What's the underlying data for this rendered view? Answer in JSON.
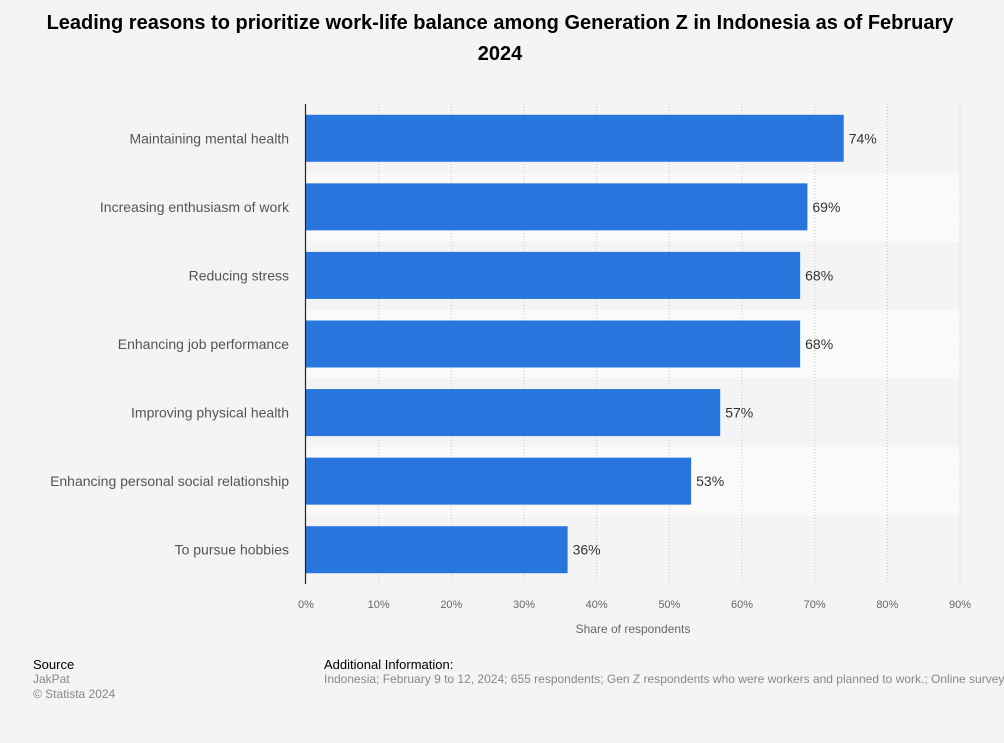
{
  "title": "Leading reasons to prioritize work-life balance among Generation Z in Indonesia as of February 2024",
  "chart_data": {
    "type": "bar",
    "orientation": "horizontal",
    "categories": [
      "Maintaining mental health",
      "Increasing enthusiasm of work",
      "Reducing stress",
      "Enhancing job performance",
      "Improving physical health",
      "Enhancing personal social relationship",
      "To pursue hobbies"
    ],
    "values": [
      74,
      69,
      68,
      68,
      57,
      53,
      36
    ],
    "value_labels": [
      "74%",
      "69%",
      "68%",
      "68%",
      "57%",
      "53%",
      "36%"
    ],
    "xlabel": "Share of respondents",
    "xlim": [
      0,
      90
    ],
    "xticks": [
      "0%",
      "10%",
      "20%",
      "30%",
      "40%",
      "50%",
      "60%",
      "70%",
      "80%",
      "90%"
    ],
    "grid": true,
    "bar_color": "#2876dd"
  },
  "footer": {
    "source_heading": "Source",
    "source_name": "JakPat",
    "copyright": "© Statista 2024",
    "info_heading": "Additional Information:",
    "info_text": "Indonesia; February 9 to 12, 2024; 655 respondents; Gen Z respondents who were workers and planned to work.; Online survey"
  }
}
